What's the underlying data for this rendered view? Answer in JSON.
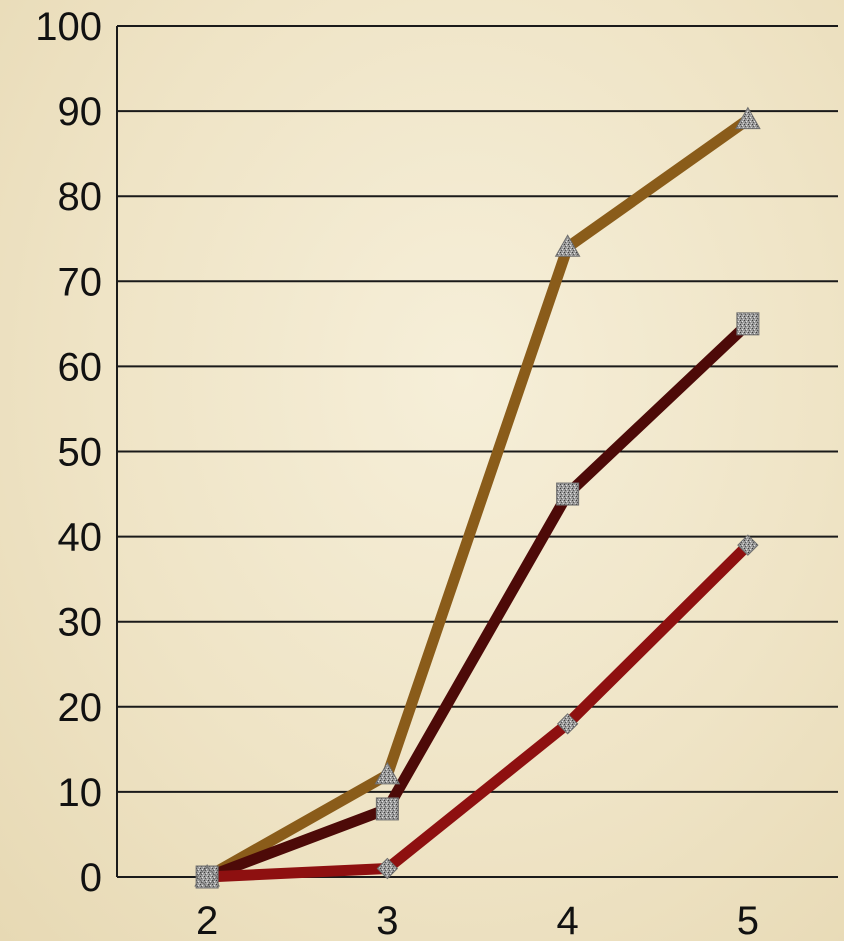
{
  "chart_data": {
    "type": "line",
    "title": "",
    "xlabel": "",
    "ylabel": "",
    "x": [
      2,
      3,
      4,
      5
    ],
    "xlim": [
      1.5,
      5.5
    ],
    "ylim": [
      0,
      100
    ],
    "y_ticks": [
      0,
      10,
      20,
      30,
      40,
      50,
      60,
      70,
      80,
      90,
      100
    ],
    "x_tick_labels": [
      "2",
      "3",
      "4",
      "5"
    ],
    "y_tick_labels": [
      "0",
      "10",
      "20",
      "30",
      "40",
      "50",
      "60",
      "70",
      "80",
      "90",
      "100"
    ],
    "grid": "horizontal",
    "legend": "none",
    "series": [
      {
        "values": [
          0,
          12,
          74,
          89
        ],
        "color": "#8a5c1a",
        "marker": "triangle"
      },
      {
        "values": [
          0,
          8,
          45,
          65
        ],
        "color": "#4d0a08",
        "marker": "square"
      },
      {
        "values": [
          0,
          1,
          18,
          39
        ],
        "color": "#8e1010",
        "marker": "diamond"
      }
    ]
  }
}
